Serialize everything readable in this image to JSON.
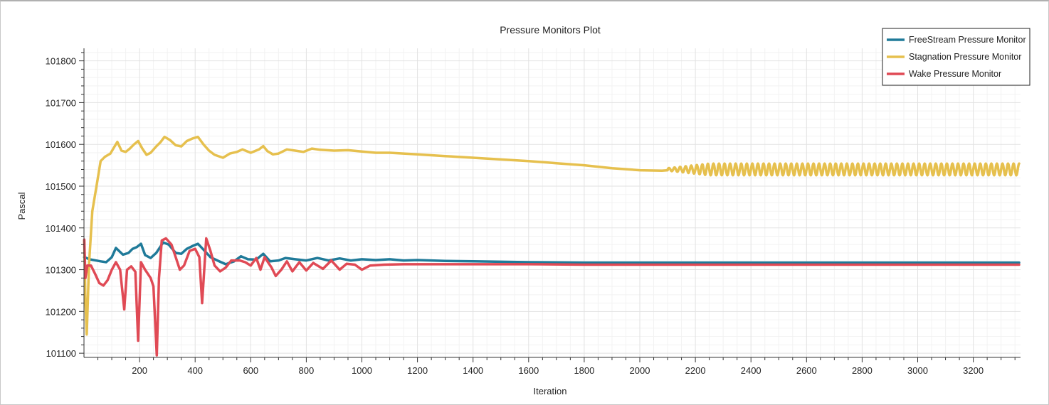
{
  "chart_data": {
    "type": "line",
    "title": "Pressure Monitors Plot",
    "xlabel": "Iteration",
    "ylabel": "Pascal",
    "xlim": [
      0,
      3370
    ],
    "ylim": [
      101090,
      101830
    ],
    "xticks": [
      200,
      400,
      600,
      800,
      1000,
      1200,
      1400,
      1600,
      1800,
      2000,
      2200,
      2400,
      2600,
      2800,
      3000,
      3200
    ],
    "xtick_labels": [
      "200",
      "400",
      "600",
      "800",
      "1000",
      "1200",
      "1400",
      "1600",
      "1800",
      "2000",
      "2200",
      "2400",
      "2600",
      "2800",
      "3000",
      "3200"
    ],
    "yticks": [
      101100,
      101200,
      101300,
      101400,
      101500,
      101600,
      101700,
      101800
    ],
    "ytick_labels": [
      "101100",
      "101200",
      "101300",
      "101400",
      "101500",
      "101600",
      "101700",
      "101800"
    ],
    "grid": true,
    "legend_position": "top-right",
    "series": [
      {
        "name": "FreeStream Pressure Monitor",
        "color": "#1f7a99",
        "points": [
          [
            1,
            101330
          ],
          [
            20,
            101325
          ],
          [
            60,
            101320
          ],
          [
            80,
            101318
          ],
          [
            100,
            101330
          ],
          [
            115,
            101352
          ],
          [
            140,
            101336
          ],
          [
            160,
            101340
          ],
          [
            175,
            101350
          ],
          [
            190,
            101354
          ],
          [
            205,
            101362
          ],
          [
            220,
            101335
          ],
          [
            240,
            101328
          ],
          [
            260,
            101340
          ],
          [
            285,
            101365
          ],
          [
            305,
            101360
          ],
          [
            330,
            101340
          ],
          [
            350,
            101338
          ],
          [
            370,
            101350
          ],
          [
            395,
            101358
          ],
          [
            410,
            101362
          ],
          [
            430,
            101348
          ],
          [
            455,
            101330
          ],
          [
            480,
            101322
          ],
          [
            510,
            101313
          ],
          [
            540,
            101320
          ],
          [
            565,
            101332
          ],
          [
            590,
            101325
          ],
          [
            620,
            101324
          ],
          [
            645,
            101338
          ],
          [
            670,
            101320
          ],
          [
            700,
            101322
          ],
          [
            725,
            101328
          ],
          [
            760,
            101325
          ],
          [
            800,
            101322
          ],
          [
            840,
            101328
          ],
          [
            880,
            101322
          ],
          [
            920,
            101327
          ],
          [
            960,
            101322
          ],
          [
            1000,
            101325
          ],
          [
            1050,
            101323
          ],
          [
            1100,
            101325
          ],
          [
            1150,
            101322
          ],
          [
            1200,
            101323
          ],
          [
            1300,
            101321
          ],
          [
            1400,
            101320
          ],
          [
            1600,
            101318
          ],
          [
            1800,
            101317
          ],
          [
            2000,
            101317
          ],
          [
            2200,
            101317
          ],
          [
            2400,
            101317
          ],
          [
            2600,
            101317
          ],
          [
            2800,
            101317
          ],
          [
            3000,
            101317
          ],
          [
            3200,
            101317
          ],
          [
            3365,
            101317
          ]
        ]
      },
      {
        "name": "Stagnation Pressure Monitor",
        "color": "#e6c04e",
        "points": [
          [
            1,
            101370
          ],
          [
            5,
            101230
          ],
          [
            10,
            101145
          ],
          [
            18,
            101310
          ],
          [
            30,
            101440
          ],
          [
            45,
            101500
          ],
          [
            60,
            101560
          ],
          [
            75,
            101570
          ],
          [
            95,
            101578
          ],
          [
            110,
            101595
          ],
          [
            120,
            101606
          ],
          [
            135,
            101585
          ],
          [
            150,
            101582
          ],
          [
            165,
            101590
          ],
          [
            180,
            101600
          ],
          [
            195,
            101608
          ],
          [
            210,
            101590
          ],
          [
            225,
            101575
          ],
          [
            240,
            101580
          ],
          [
            260,
            101595
          ],
          [
            275,
            101605
          ],
          [
            290,
            101618
          ],
          [
            310,
            101610
          ],
          [
            330,
            101598
          ],
          [
            350,
            101595
          ],
          [
            370,
            101608
          ],
          [
            390,
            101614
          ],
          [
            410,
            101618
          ],
          [
            430,
            101600
          ],
          [
            450,
            101585
          ],
          [
            470,
            101575
          ],
          [
            500,
            101568
          ],
          [
            525,
            101578
          ],
          [
            550,
            101582
          ],
          [
            570,
            101588
          ],
          [
            600,
            101580
          ],
          [
            630,
            101588
          ],
          [
            645,
            101596
          ],
          [
            660,
            101584
          ],
          [
            680,
            101576
          ],
          [
            700,
            101578
          ],
          [
            730,
            101588
          ],
          [
            760,
            101585
          ],
          [
            790,
            101582
          ],
          [
            820,
            101590
          ],
          [
            850,
            101587
          ],
          [
            900,
            101585
          ],
          [
            950,
            101586
          ],
          [
            1000,
            101583
          ],
          [
            1050,
            101580
          ],
          [
            1100,
            101580
          ],
          [
            1150,
            101578
          ],
          [
            1200,
            101576
          ],
          [
            1300,
            101572
          ],
          [
            1400,
            101568
          ],
          [
            1500,
            101564
          ],
          [
            1600,
            101560
          ],
          [
            1700,
            101555
          ],
          [
            1800,
            101550
          ],
          [
            1900,
            101543
          ],
          [
            2000,
            101538
          ],
          [
            2080,
            101537
          ],
          [
            2100,
            101538
          ]
        ],
        "oscillation": {
          "start": 2100,
          "end": 3365,
          "center": 101540,
          "amplitude": 14,
          "start_amplitude": 3,
          "period": 20
        }
      },
      {
        "name": "Wake Pressure Monitor",
        "color": "#e04a55",
        "points": [
          [
            1,
            101372
          ],
          [
            5,
            101280
          ],
          [
            12,
            101310
          ],
          [
            25,
            101310
          ],
          [
            40,
            101290
          ],
          [
            55,
            101268
          ],
          [
            70,
            101262
          ],
          [
            85,
            101275
          ],
          [
            100,
            101300
          ],
          [
            115,
            101318
          ],
          [
            130,
            101300
          ],
          [
            145,
            101205
          ],
          [
            155,
            101300
          ],
          [
            170,
            101308
          ],
          [
            185,
            101295
          ],
          [
            195,
            101130
          ],
          [
            205,
            101318
          ],
          [
            220,
            101300
          ],
          [
            240,
            101280
          ],
          [
            250,
            101260
          ],
          [
            262,
            101095
          ],
          [
            270,
            101280
          ],
          [
            280,
            101370
          ],
          [
            295,
            101375
          ],
          [
            315,
            101360
          ],
          [
            330,
            101330
          ],
          [
            345,
            101300
          ],
          [
            360,
            101310
          ],
          [
            380,
            101345
          ],
          [
            400,
            101350
          ],
          [
            415,
            101330
          ],
          [
            425,
            101220
          ],
          [
            440,
            101375
          ],
          [
            455,
            101345
          ],
          [
            470,
            101310
          ],
          [
            490,
            101296
          ],
          [
            510,
            101305
          ],
          [
            530,
            101322
          ],
          [
            560,
            101322
          ],
          [
            580,
            101318
          ],
          [
            600,
            101310
          ],
          [
            620,
            101328
          ],
          [
            635,
            101300
          ],
          [
            650,
            101330
          ],
          [
            675,
            101305
          ],
          [
            690,
            101285
          ],
          [
            710,
            101300
          ],
          [
            730,
            101320
          ],
          [
            750,
            101296
          ],
          [
            775,
            101318
          ],
          [
            800,
            101298
          ],
          [
            825,
            101316
          ],
          [
            860,
            101302
          ],
          [
            890,
            101322
          ],
          [
            920,
            101300
          ],
          [
            945,
            101314
          ],
          [
            975,
            101312
          ],
          [
            1000,
            101300
          ],
          [
            1030,
            101310
          ],
          [
            1080,
            101312
          ],
          [
            1150,
            101313
          ],
          [
            1250,
            101313
          ],
          [
            1400,
            101313
          ],
          [
            1600,
            101313
          ],
          [
            1800,
            101312
          ],
          [
            2000,
            101312
          ],
          [
            2200,
            101312
          ],
          [
            2400,
            101312
          ],
          [
            2600,
            101312
          ],
          [
            2800,
            101312
          ],
          [
            3000,
            101312
          ],
          [
            3200,
            101312
          ],
          [
            3365,
            101312
          ]
        ]
      }
    ]
  }
}
